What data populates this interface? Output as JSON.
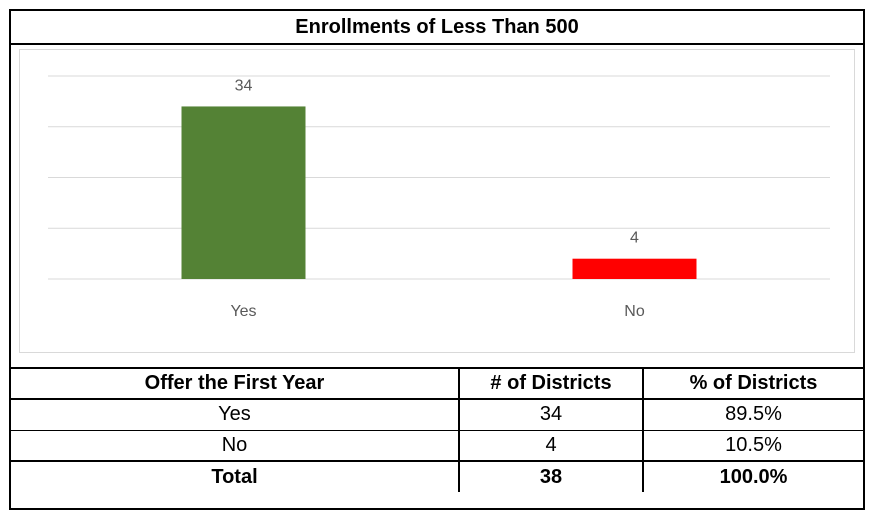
{
  "chart_data": {
    "type": "bar",
    "title": "Enrollments of Less Than 500",
    "categories": [
      "Yes",
      "No"
    ],
    "values": [
      34,
      4
    ],
    "data_labels": [
      "34",
      "4"
    ],
    "colors": [
      "#548235",
      "#ff0000"
    ],
    "ylim": [
      0,
      40
    ],
    "grid": true,
    "legend": "none"
  },
  "table": {
    "headers": [
      "Offer the First Year",
      "# of Districts",
      "% of Districts"
    ],
    "rows": [
      [
        "Yes",
        "34",
        "89.5%"
      ],
      [
        "No",
        "4",
        "10.5%"
      ]
    ],
    "total": [
      "Total",
      "38",
      "100.0%"
    ]
  }
}
